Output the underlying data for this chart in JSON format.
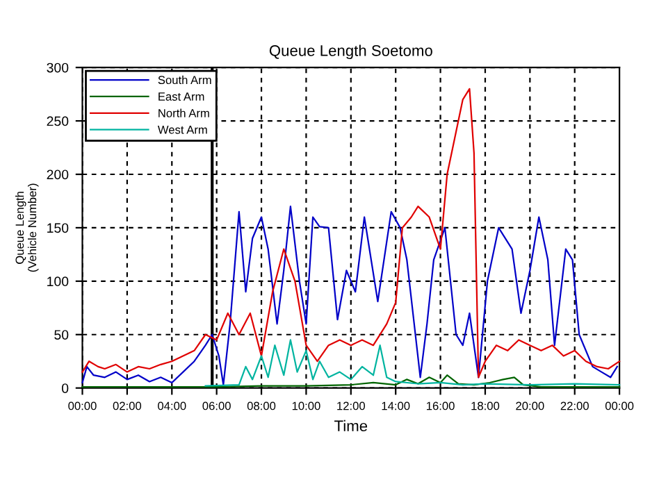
{
  "chart_data": {
    "type": "line",
    "title": "Queue Length Soetomo",
    "xlabel": "Time",
    "ylabel": "Queue Length\n(Vehicle Number)",
    "xlim": [
      0,
      24
    ],
    "xticks": [
      {
        "value": 0,
        "label": "00:00"
      },
      {
        "value": 2,
        "label": "02:00"
      },
      {
        "value": 4,
        "label": "04:00"
      },
      {
        "value": 6,
        "label": "06:00"
      },
      {
        "value": 8,
        "label": "08:00"
      },
      {
        "value": 10,
        "label": "10:00"
      },
      {
        "value": 12,
        "label": "12:00"
      },
      {
        "value": 14,
        "label": "14:00"
      },
      {
        "value": 16,
        "label": "16:00"
      },
      {
        "value": 18,
        "label": "18:00"
      },
      {
        "value": 20,
        "label": "20:00"
      },
      {
        "value": 22,
        "label": "22:00"
      },
      {
        "value": 24,
        "label": "00:00"
      }
    ],
    "ylim": [
      0,
      300
    ],
    "yticks": [
      0,
      50,
      100,
      150,
      200,
      250,
      300
    ],
    "grid": true,
    "legend": "top left",
    "line_style": "solid",
    "ref_lines": [
      {
        "axis": "x",
        "value": 5.8,
        "color": "#000000"
      }
    ],
    "series": [
      {
        "name": "South Arm",
        "color": "#0000c8",
        "x": [
          0,
          0.2,
          0.5,
          1,
          1.5,
          2,
          2.5,
          3,
          3.5,
          4,
          4.5,
          5,
          5.5,
          5.8,
          6.1,
          6.3,
          6.6,
          7,
          7.3,
          7.6,
          8,
          8.3,
          8.7,
          9,
          9.3,
          9.7,
          10,
          10.3,
          10.6,
          11,
          11.4,
          11.8,
          12.2,
          12.6,
          13.2,
          13.8,
          14.2,
          14.5,
          15.1,
          15.4,
          15.7,
          16.2,
          16.7,
          17,
          17.3,
          17.7,
          18.1,
          18.6,
          19.2,
          19.6,
          20,
          20.4,
          20.8,
          21.1,
          21.6,
          21.9,
          22.2,
          22.8,
          23.2,
          23.6,
          23.9
        ],
        "values": [
          5,
          20,
          12,
          10,
          15,
          8,
          12,
          6,
          10,
          5,
          15,
          25,
          40,
          50,
          30,
          3,
          60,
          165,
          90,
          140,
          160,
          130,
          60,
          110,
          170,
          100,
          60,
          160,
          151,
          150,
          64,
          110,
          90,
          160,
          81,
          165,
          150,
          120,
          10,
          60,
          120,
          150,
          50,
          40,
          70,
          10,
          100,
          150,
          130,
          70,
          110,
          160,
          120,
          40,
          130,
          120,
          50,
          20,
          15,
          10,
          20
        ]
      },
      {
        "name": "East Arm",
        "color": "#006400",
        "x": [
          0,
          2,
          4,
          6,
          8,
          10,
          12,
          13,
          14,
          14.5,
          15,
          15.5,
          16,
          16.3,
          16.8,
          17.5,
          18.2,
          18.8,
          19.3,
          19.7,
          20.5,
          22,
          24
        ],
        "values": [
          1,
          1,
          1,
          1,
          2,
          2,
          3,
          5,
          3,
          8,
          4,
          10,
          5,
          12,
          4,
          3,
          5,
          8,
          10,
          3,
          1,
          1,
          1
        ]
      },
      {
        "name": "North Arm",
        "color": "#e00000",
        "x": [
          0,
          0.3,
          0.7,
          1,
          1.5,
          2,
          2.5,
          3,
          3.5,
          4,
          4.5,
          5,
          5.5,
          6,
          6.5,
          7,
          7.5,
          8,
          8.5,
          9,
          9.5,
          10,
          10.5,
          11,
          11.5,
          12,
          12.5,
          13,
          13.6,
          14,
          14.3,
          14.7,
          15,
          15.5,
          16,
          16.3,
          16.7,
          17,
          17.3,
          17.5,
          17.7,
          18,
          18.5,
          19,
          19.5,
          20,
          20.5,
          21,
          21.5,
          22,
          22.5,
          23,
          23.5,
          24
        ],
        "values": [
          15,
          25,
          20,
          18,
          22,
          15,
          20,
          18,
          22,
          25,
          30,
          35,
          50,
          45,
          70,
          50,
          70,
          30,
          90,
          130,
          100,
          40,
          25,
          40,
          45,
          40,
          45,
          40,
          60,
          80,
          150,
          160,
          170,
          160,
          130,
          200,
          240,
          270,
          280,
          220,
          10,
          25,
          40,
          35,
          45,
          40,
          35,
          40,
          30,
          35,
          25,
          20,
          18,
          25
        ]
      },
      {
        "name": "West Arm",
        "color": "#00b4a0",
        "x": [
          5.5,
          7,
          7.3,
          7.6,
          8,
          8.3,
          8.6,
          9,
          9.3,
          9.6,
          10,
          10.3,
          10.6,
          11,
          11.5,
          12,
          12.5,
          13,
          13.3,
          13.6,
          14,
          15,
          16,
          17,
          18,
          20,
          22,
          24
        ],
        "values": [
          2,
          3,
          20,
          8,
          30,
          10,
          40,
          12,
          45,
          15,
          35,
          8,
          25,
          10,
          15,
          8,
          20,
          12,
          40,
          10,
          6,
          4,
          5,
          3,
          4,
          3,
          4,
          3
        ]
      }
    ]
  }
}
